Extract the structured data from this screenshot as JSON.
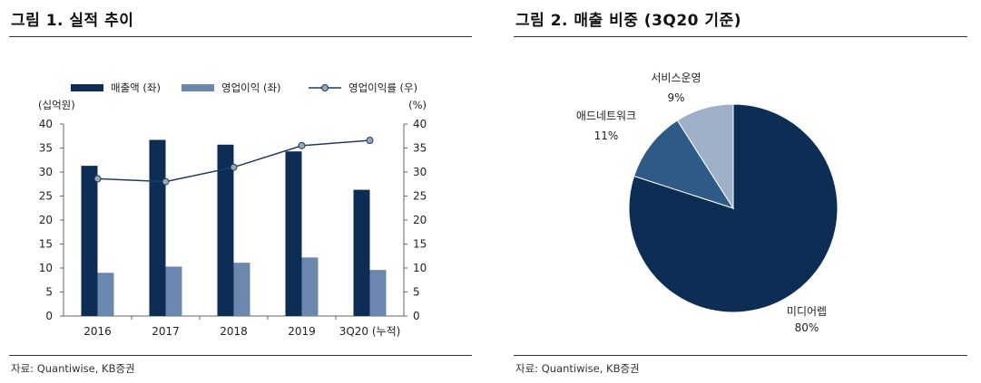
{
  "left": {
    "title": "그림 1. 실적 추이",
    "source": "자료: Quantiwise, KB증권"
  },
  "right": {
    "title": "그림 2. 매출 비중 (3Q20 기준)",
    "source": "자료: Quantiwise, KB증권"
  },
  "colors": {
    "revenue": "#0e2d55",
    "op_income": "#6b87ad",
    "margin_line": "#1f3b64",
    "margin_marker": "#9aa6b6",
    "pie_media": "#0e2d55",
    "pie_adnetwork": "#2d5a86",
    "pie_service": "#9fb0c9"
  },
  "chart_data": [
    {
      "type": "bar",
      "categories": [
        "2016",
        "2017",
        "2018",
        "2019",
        "3Q20 (누적)"
      ],
      "series": [
        {
          "name": "매출액 (좌)",
          "values": [
            31.3,
            36.7,
            35.7,
            34.3,
            26.3
          ],
          "axis": "left"
        },
        {
          "name": "영업이익 (좌)",
          "values": [
            9.0,
            10.3,
            11.1,
            12.2,
            9.6
          ],
          "axis": "left"
        },
        {
          "name": "영업이익률 (우)",
          "values": [
            28.6,
            28.0,
            31.0,
            35.5,
            36.6
          ],
          "axis": "right",
          "render": "line"
        }
      ],
      "ylabel_left": "(십억원)",
      "ylabel_right": "(%)",
      "ylim": [
        0,
        40
      ],
      "yticks": [
        0,
        5,
        10,
        15,
        20,
        25,
        30,
        35,
        40
      ],
      "legend_position": "top"
    },
    {
      "type": "pie",
      "slices": [
        {
          "label": "미디어렙",
          "pct_label": "80%",
          "value": 80
        },
        {
          "label": "애드네트워크",
          "pct_label": "11%",
          "value": 11
        },
        {
          "label": "서비스운영",
          "pct_label": "9%",
          "value": 9
        }
      ]
    }
  ]
}
